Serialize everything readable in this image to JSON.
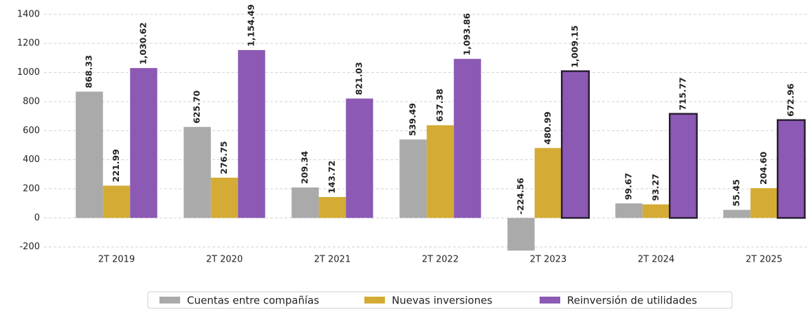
{
  "chart_data": {
    "type": "bar",
    "categories": [
      "2T 2019",
      "2T 2020",
      "2T 2021",
      "2T 2022",
      "2T 2023",
      "2T 2024",
      "2T 2025"
    ],
    "series": [
      {
        "name": "Cuentas entre compañías",
        "color": "#aaaaaa",
        "values": [
          868.33,
          625.7,
          209.34,
          539.49,
          -224.56,
          99.67,
          55.45
        ],
        "value_labels": [
          "868.33",
          "625.70",
          "209.34",
          "539.49",
          "-224.56",
          "99.67",
          "55.45"
        ],
        "outlined": [
          false,
          false,
          false,
          false,
          false,
          false,
          false
        ]
      },
      {
        "name": "Nuevas inversiones",
        "color": "#d4ac35",
        "values": [
          221.99,
          276.75,
          143.72,
          637.38,
          480.99,
          93.27,
          204.6
        ],
        "value_labels": [
          "221.99",
          "276.75",
          "143.72",
          "637.38",
          "480.99",
          "93.27",
          "204.60"
        ],
        "outlined": [
          false,
          false,
          false,
          false,
          false,
          false,
          false
        ]
      },
      {
        "name": "Reinversión de utilidades",
        "color": "#8c59b4",
        "values": [
          1030.62,
          1154.49,
          821.03,
          1093.86,
          1009.15,
          715.77,
          672.96
        ],
        "value_labels": [
          "1,030.62",
          "1,154.49",
          "821.03",
          "1,093.86",
          "1,009.15",
          "715.77",
          "672.96"
        ],
        "outlined": [
          false,
          false,
          false,
          false,
          true,
          true,
          true
        ]
      }
    ],
    "ylim": [
      -225,
      1475
    ],
    "yticks": [
      -200,
      0,
      200,
      400,
      600,
      800,
      1000,
      1200,
      1400
    ],
    "grid": true,
    "legend": "bottom"
  }
}
